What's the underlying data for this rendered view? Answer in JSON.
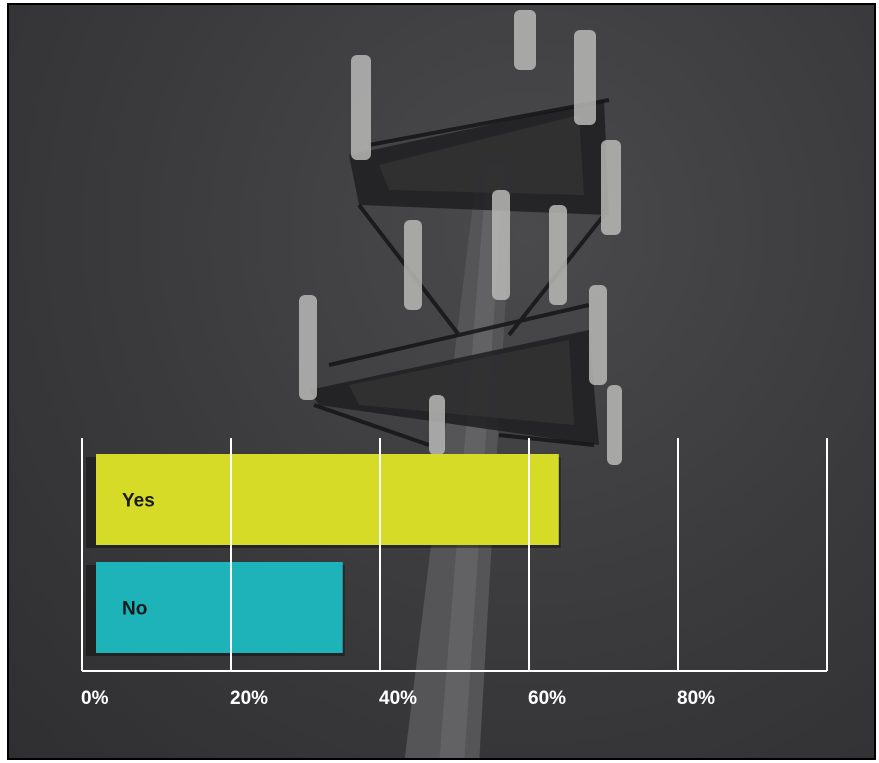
{
  "chart_data": {
    "type": "bar",
    "orientation": "horizontal",
    "title": "",
    "xlabel": "",
    "ylabel": "",
    "categories": [
      "Yes",
      "No"
    ],
    "values": [
      64,
      35
    ],
    "unit": "%",
    "xlim": [
      0,
      100
    ],
    "xticks": [
      0,
      20,
      40,
      60,
      80
    ],
    "xtick_labels": [
      "0%",
      "20%",
      "40%",
      "60%",
      "80%"
    ],
    "grid": true,
    "legend": "none",
    "colors": {
      "Yes": "#d6db28",
      "No": "#1db3b8"
    }
  },
  "background": {
    "subject": "cell-tower-photo",
    "colors": {
      "sky": "#3d3d3f",
      "tower": "#1a1a1c"
    }
  }
}
